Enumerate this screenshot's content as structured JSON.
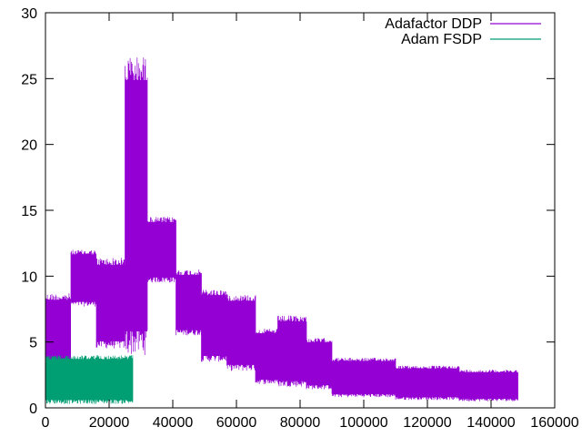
{
  "chart_data": {
    "type": "line",
    "title": "",
    "xlabel": "",
    "ylabel": "",
    "xlim": [
      0,
      160000
    ],
    "ylim": [
      0,
      30
    ],
    "xticks": [
      0,
      20000,
      40000,
      60000,
      80000,
      100000,
      120000,
      140000,
      160000
    ],
    "yticks": [
      0,
      5,
      10,
      15,
      20,
      25,
      30
    ],
    "grid": false,
    "legend_position": "top-right",
    "series": [
      {
        "name": "Adafactor DDP",
        "color": "#9400d3",
        "segments": [
          {
            "x_start": 0,
            "x_end": 8000,
            "low": 2.5,
            "high": 8.7
          },
          {
            "x_start": 8000,
            "x_end": 16000,
            "low": 7.7,
            "high": 12.0
          },
          {
            "x_start": 16000,
            "x_end": 25000,
            "low": 4.5,
            "high": 11.4
          },
          {
            "x_start": 25000,
            "x_end": 32000,
            "low": 4.0,
            "high": 26.7
          },
          {
            "x_start": 32000,
            "x_end": 41000,
            "low": 9.5,
            "high": 14.5
          },
          {
            "x_start": 41000,
            "x_end": 49000,
            "low": 5.5,
            "high": 10.5
          },
          {
            "x_start": 49000,
            "x_end": 57000,
            "low": 3.5,
            "high": 9.0
          },
          {
            "x_start": 57000,
            "x_end": 66000,
            "low": 2.8,
            "high": 8.6
          },
          {
            "x_start": 66000,
            "x_end": 73000,
            "low": 1.8,
            "high": 6.0
          },
          {
            "x_start": 73000,
            "x_end": 82000,
            "low": 1.6,
            "high": 7.0
          },
          {
            "x_start": 82000,
            "x_end": 90000,
            "low": 1.4,
            "high": 5.3
          },
          {
            "x_start": 90000,
            "x_end": 110000,
            "low": 0.8,
            "high": 3.8
          },
          {
            "x_start": 110000,
            "x_end": 130000,
            "low": 0.6,
            "high": 3.2
          },
          {
            "x_start": 130000,
            "x_end": 148500,
            "low": 0.5,
            "high": 2.9
          }
        ]
      },
      {
        "name": "Adam FSDP",
        "color": "#009e73",
        "segments": [
          {
            "x_start": 0,
            "x_end": 27500,
            "low": 0.3,
            "high": 4.0
          }
        ]
      }
    ]
  }
}
